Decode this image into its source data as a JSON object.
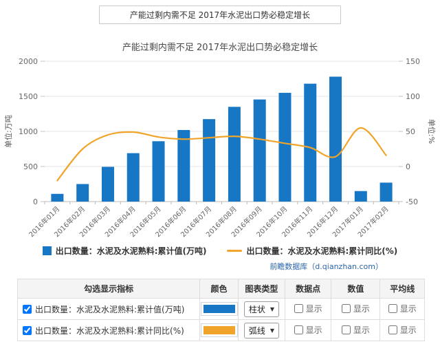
{
  "header": {
    "title": "产能过剩内需不足 2017年水泥出口势必稳定增长"
  },
  "chart_data": {
    "type": "bar+line combo",
    "title": "产能过剩内需不足 2017年水泥出口势必稳定增长",
    "categories": [
      "2016年01月",
      "2016年02月",
      "2016年03月",
      "2016年04月",
      "2016年05月",
      "2016年06月",
      "2016年07月",
      "2016年08月",
      "2016年09月",
      "2016年10月",
      "2016年11月",
      "2016年12月",
      "2017年01月",
      "2017年02月"
    ],
    "series": [
      {
        "name": "出口数量：水泥及水泥熟料:累计值(万吨)",
        "type": "bar",
        "axis": "left",
        "color": "#1777c4",
        "values": [
          110,
          250,
          495,
          690,
          860,
          1020,
          1175,
          1350,
          1455,
          1550,
          1680,
          1780,
          150,
          270
        ]
      },
      {
        "name": "出口数量：水泥及水泥熟料:累计同比(%)",
        "type": "line",
        "axis": "right",
        "color": "#f0a429",
        "values": [
          -20,
          25,
          45,
          49,
          42,
          39,
          41,
          43,
          39,
          33,
          27,
          14,
          55,
          16
        ]
      }
    ],
    "left_axis": {
      "label": "单位:万吨",
      "ticks": [
        0,
        500,
        1000,
        1500,
        2000
      ],
      "range": [
        0,
        2000
      ]
    },
    "right_axis": {
      "label": "单位:%",
      "ticks": [
        -50,
        0,
        50,
        100,
        150
      ],
      "range": [
        -50,
        150
      ]
    },
    "grid": true,
    "legend_position": "bottom"
  },
  "source": {
    "text": "前瞻数据库（d.qianzhan.com）"
  },
  "table": {
    "headers": [
      "勾选显示指标",
      "颜色",
      "图表类型",
      "数据点",
      "数值",
      "平均线"
    ],
    "show_label": "显示",
    "rows": [
      {
        "checked": true,
        "label": "出口数量：水泥及水泥熟料:累计值(万吨)",
        "color": "#1777c4",
        "chart_type": "柱状",
        "show_datapoint": false,
        "show_value": false,
        "show_average": false
      },
      {
        "checked": true,
        "label": "出口数量：水泥及水泥熟料:累计同比(%)",
        "color": "#f0a429",
        "chart_type": "弧线",
        "show_datapoint": false,
        "show_value": false,
        "show_average": false
      }
    ]
  }
}
